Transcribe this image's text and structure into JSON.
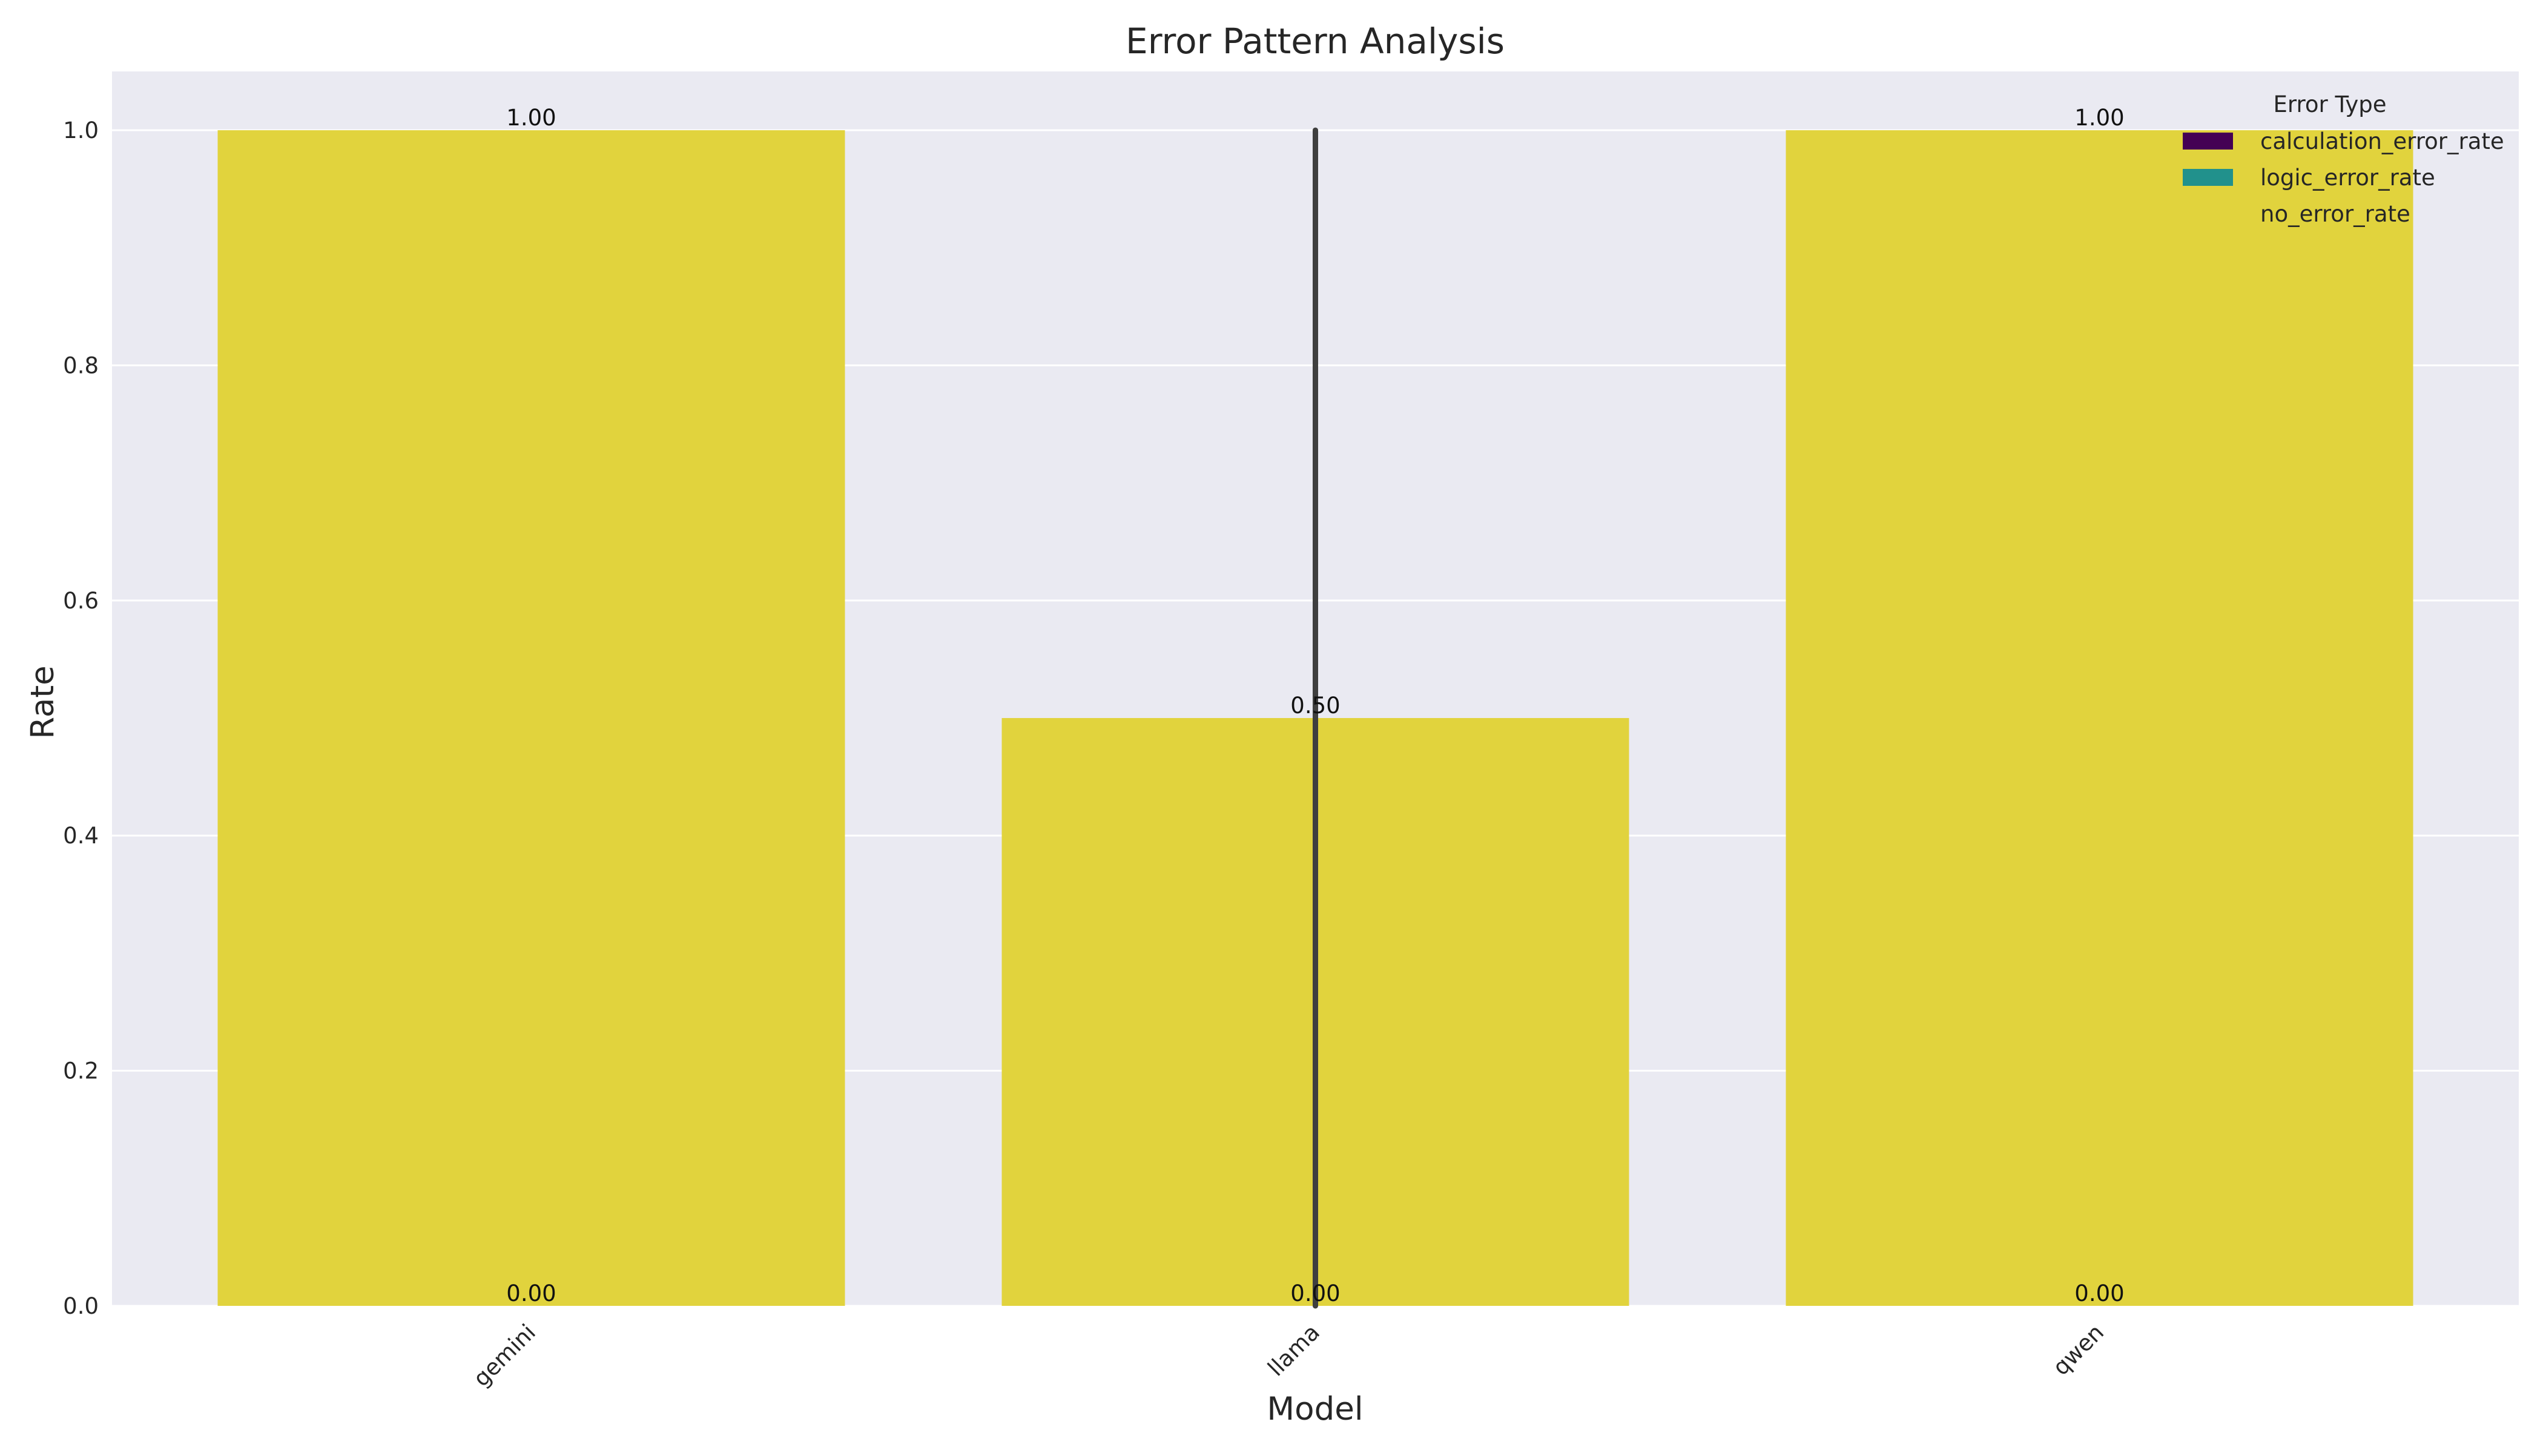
{
  "chart_data": {
    "type": "bar",
    "title": "Error Pattern Analysis",
    "xlabel": "Model",
    "ylabel": "Rate",
    "categories": [
      "gemini",
      "llama",
      "qwen"
    ],
    "ylim": [
      0,
      1.05
    ],
    "yticks": [
      "0.0",
      "0.2",
      "0.4",
      "0.6",
      "0.8",
      "1.0"
    ],
    "grid": true,
    "legend": {
      "title": "Error Type",
      "placement": "top-right"
    },
    "series": [
      {
        "name": "calculation_error_rate",
        "color": "#440154",
        "values": [
          0,
          0,
          0
        ]
      },
      {
        "name": "logic_error_rate",
        "color": "#21918c",
        "values": [
          0,
          0,
          0
        ]
      },
      {
        "name": "no_error_rate",
        "color": "#fde725",
        "values": [
          1.0,
          0.5,
          1.0
        ]
      }
    ],
    "error_bars": [
      {
        "category": "llama",
        "low": 0.0,
        "high": 1.0
      }
    ],
    "data_labels": [
      {
        "category": "gemini",
        "text": "1.00",
        "value": 1.0
      },
      {
        "category": "gemini",
        "text": "0.00",
        "value": 0.0
      },
      {
        "category": "llama",
        "text": "0.50",
        "value": 0.5
      },
      {
        "category": "llama",
        "text": "0.00",
        "value": 0.0
      },
      {
        "category": "qwen",
        "text": "1.00",
        "value": 1.0
      },
      {
        "category": "qwen",
        "text": "0.00",
        "value": 0.0
      }
    ],
    "colors": {
      "plot_background": "#eaeaf2",
      "grid": "#ffffff",
      "bar_fill": "#e1d33d",
      "error_bar": "#3f3f3f"
    }
  }
}
